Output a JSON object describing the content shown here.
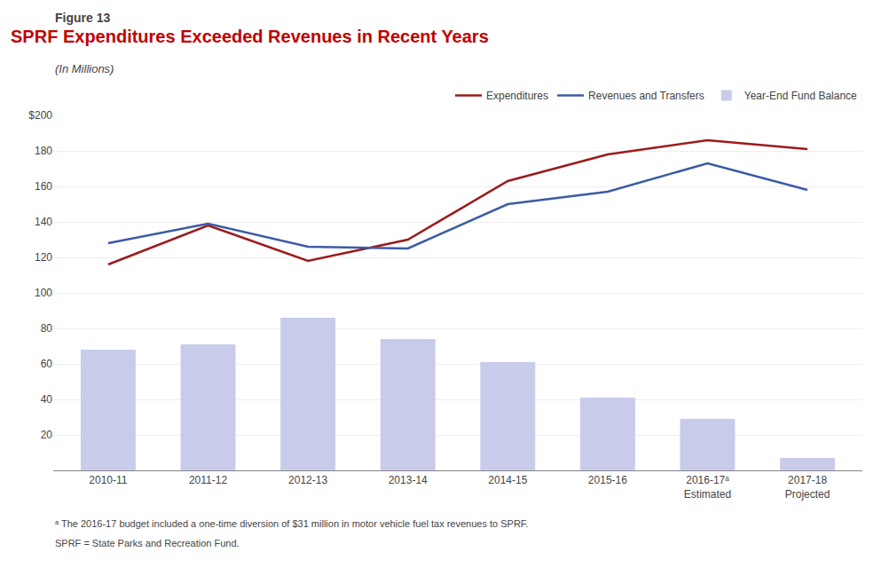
{
  "chart_data": {
    "type": "bar",
    "title": "SPRF Expenditures Exceeded Revenues in Recent Years",
    "subtitle": "(In Millions)",
    "annotations": [
      "Figure 13",
      "ᵃ The 2016-17 budget included a one-time diversion of $31 million in motor vehicle fuel tax revenues to SPRF.",
      "SPRF = State Parks and Recreation Fund."
    ],
    "categories": [
      "2010-11",
      "2011-12",
      "2012-13",
      "2013-14",
      "2014-15",
      "2015-16",
      "2016-17ᵃ\nEstimated",
      "2017-18\nProjected"
    ],
    "series": [
      {
        "name": "Expenditures",
        "type": "line",
        "color": "#9B1B1B",
        "values": [
          116,
          138,
          118,
          130,
          163,
          178,
          186,
          181
        ]
      },
      {
        "name": "Revenues and Transfers",
        "type": "line",
        "color": "#3B5BA5",
        "values": [
          128,
          139,
          126,
          125,
          150,
          157,
          173,
          158
        ]
      },
      {
        "name": "Year-End Fund Balance",
        "type": "bar",
        "color": "#C8CCEA",
        "values": [
          68,
          71,
          86,
          74,
          61,
          41,
          29,
          7
        ]
      }
    ],
    "ylim": [
      0,
      200
    ],
    "yticks": [
      20,
      40,
      60,
      80,
      100,
      120,
      140,
      160,
      180,
      {
        "value": 200,
        "label": "$200"
      }
    ],
    "grid": true,
    "legend": "upper right"
  }
}
